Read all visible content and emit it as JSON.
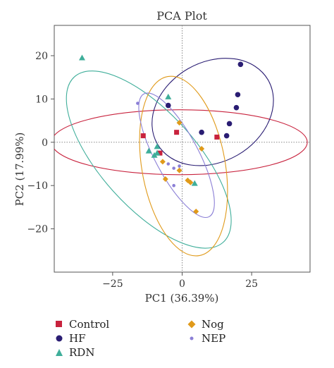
{
  "chart_data": {
    "type": "scatter",
    "title": "PCA Plot",
    "xlabel": "PC1 (36.39%)",
    "ylabel": "PC2 (17.99%)",
    "xlim": [
      -46,
      46
    ],
    "ylim": [
      -30,
      27
    ],
    "xticks": [
      -25,
      0,
      25
    ],
    "yticks": [
      20,
      10,
      0,
      -10,
      -20
    ],
    "grid": false,
    "reference_lines": [
      0,
      0
    ],
    "legend_position": "bottom",
    "series": [
      {
        "name": "Control",
        "color": "#c8223d",
        "marker": "square",
        "points": [
          [
            -14,
            1.5
          ],
          [
            -2,
            2.3
          ],
          [
            -8,
            -2.5
          ],
          [
            12.5,
            1.2
          ]
        ],
        "ellipse": {
          "cx": -1,
          "cy": 0,
          "rx": 46,
          "ry": 7.5,
          "angle": 0
        }
      },
      {
        "name": "HF",
        "color": "#2a1d73",
        "marker": "circle",
        "points": [
          [
            -5,
            8.5
          ],
          [
            21,
            18
          ],
          [
            20,
            11
          ],
          [
            19.5,
            8
          ],
          [
            17,
            4.3
          ],
          [
            16,
            1.5
          ],
          [
            7,
            2.3
          ]
        ],
        "ellipse": {
          "cx": 11,
          "cy": 7,
          "rx": 23,
          "ry": 11.5,
          "angle": 30
        }
      },
      {
        "name": "RDN",
        "color": "#3fae9a",
        "marker": "triangle",
        "points": [
          [
            -36,
            19.5
          ],
          [
            -5,
            10.5
          ],
          [
            -12,
            -2
          ],
          [
            -9,
            -1
          ],
          [
            -9,
            -2.5
          ],
          [
            -10,
            -3
          ],
          [
            4.5,
            -9.5
          ]
        ],
        "ellipse": {
          "cx": -12,
          "cy": -4,
          "rx": 40,
          "ry": 11,
          "angle": -48
        }
      },
      {
        "name": "Nog",
        "color": "#e09a1a",
        "marker": "diamond",
        "points": [
          [
            -1,
            4.5
          ],
          [
            -7,
            -4.5
          ],
          [
            -6,
            -8.5
          ],
          [
            -1,
            -6.5
          ],
          [
            2,
            -8.8
          ],
          [
            3,
            -9.3
          ],
          [
            7,
            -1.5
          ],
          [
            5,
            -16
          ]
        ],
        "ellipse": {
          "cx": 0.5,
          "cy": -5.5,
          "rx": 15,
          "ry": 21,
          "angle": 10
        }
      },
      {
        "name": "NEP",
        "color": "#8b7fd6",
        "marker": "dot",
        "points": [
          [
            -16,
            9
          ],
          [
            -5,
            -5
          ],
          [
            -3,
            -6
          ],
          [
            -3,
            -10
          ],
          [
            -1,
            -5.5
          ]
        ],
        "ellipse": {
          "cx": -2,
          "cy": -3,
          "rx": 25,
          "ry": 5,
          "angle": -62
        }
      }
    ]
  }
}
